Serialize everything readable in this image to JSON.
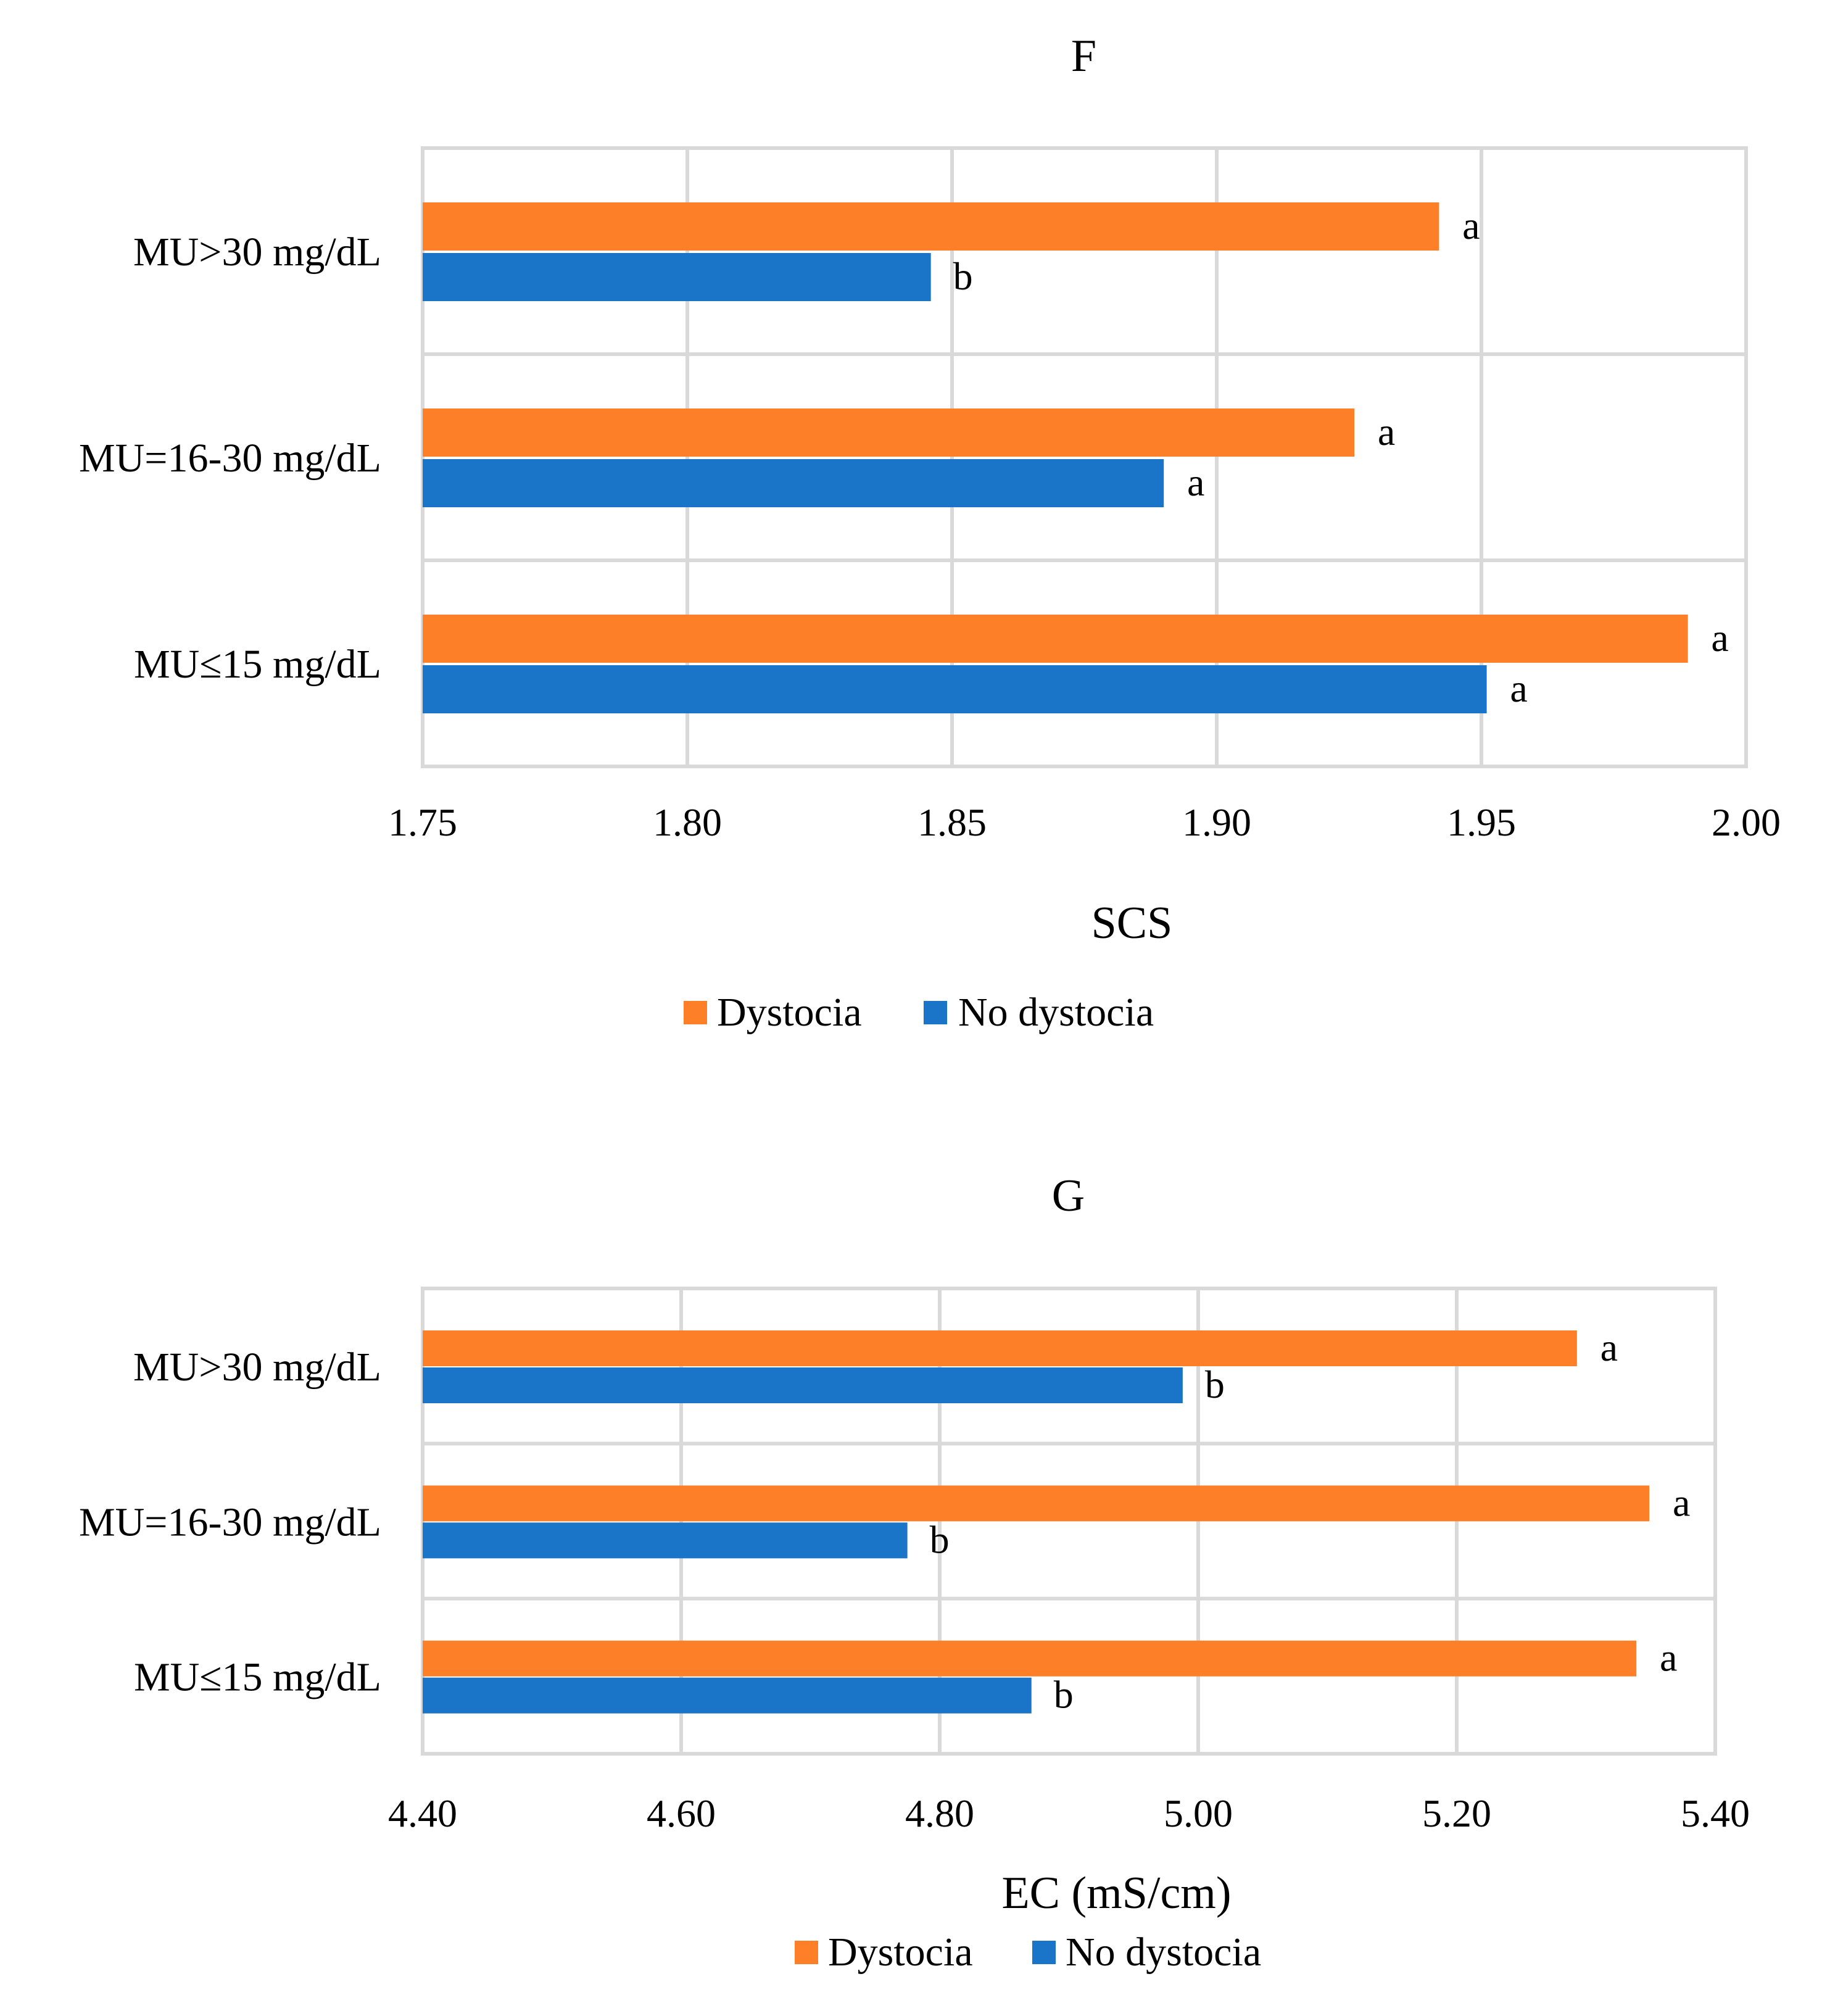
{
  "chart_data": [
    {
      "id": "F",
      "type": "bar",
      "orientation": "horizontal",
      "title": "F",
      "xlabel": "SCS",
      "ylabel": "",
      "categories": [
        "MU>30 mg/dL",
        "MU=16-30 mg/dL",
        "MU≤15 mg/dL"
      ],
      "xlim": [
        1.75,
        2.0
      ],
      "ticks": [
        "1.75",
        "1.80",
        "1.85",
        "1.90",
        "1.95",
        "2.00"
      ],
      "tick_values": [
        1.75,
        1.8,
        1.85,
        1.9,
        1.95,
        2.0
      ],
      "grid": true,
      "legend_position": "bottom",
      "series": [
        {
          "name": "Dystocia",
          "color": "#fd7f27",
          "values": [
            1.942,
            1.926,
            1.989
          ],
          "letters": [
            "a",
            "a",
            "a"
          ]
        },
        {
          "name": "No dystocia",
          "color": "#1a74c8",
          "values": [
            1.846,
            1.89,
            1.951
          ],
          "letters": [
            "b",
            "a",
            "a"
          ]
        }
      ]
    },
    {
      "id": "G",
      "type": "bar",
      "orientation": "horizontal",
      "title": "G",
      "xlabel": "EC (mS/cm)",
      "ylabel": "",
      "categories": [
        "MU>30 mg/dL",
        "MU=16-30 mg/dL",
        "MU≤15 mg/dL"
      ],
      "xlim": [
        4.4,
        5.4
      ],
      "ticks": [
        "4.40",
        "4.60",
        "4.80",
        "5.00",
        "5.20",
        "5.40"
      ],
      "tick_values": [
        4.4,
        4.6,
        4.8,
        5.0,
        5.2,
        5.4
      ],
      "grid": true,
      "legend_position": "bottom",
      "series": [
        {
          "name": "Dystocia",
          "color": "#fd7f27",
          "values": [
            5.293,
            5.349,
            5.339
          ],
          "letters": [
            "a",
            "a",
            "a"
          ]
        },
        {
          "name": "No dystocia",
          "color": "#1a74c8",
          "values": [
            4.988,
            4.775,
            4.871
          ],
          "letters": [
            "b",
            "b",
            "b"
          ]
        }
      ]
    }
  ]
}
